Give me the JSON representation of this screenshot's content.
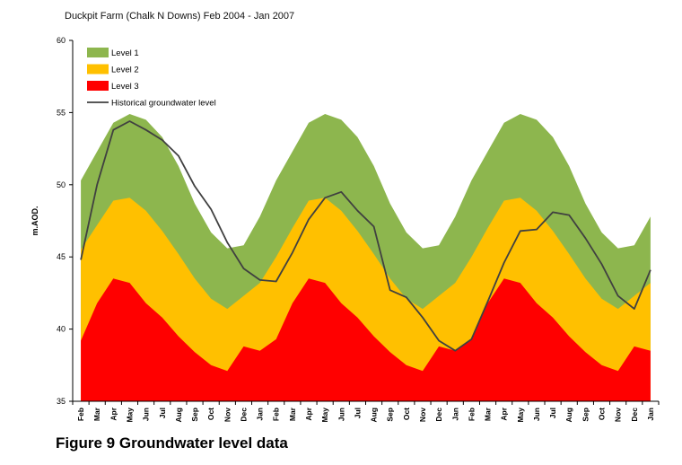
{
  "chart_data": {
    "type": "area",
    "title": "Duckpit Farm (Chalk N Downs) Feb 2004 - Jan 2007",
    "caption": "Figure 9 Groundwater level data",
    "ylabel": "m.AOD.",
    "xlabel": "",
    "ylim": [
      35,
      60
    ],
    "yticks": [
      35,
      40,
      45,
      50,
      55,
      60
    ],
    "categories": [
      "Feb",
      "Mar",
      "Apr",
      "May",
      "Jun",
      "Jul",
      "Aug",
      "Sep",
      "Oct",
      "Nov",
      "Dec",
      "Jan",
      "Feb",
      "Mar",
      "Apr",
      "May",
      "Jun",
      "Jul",
      "Aug",
      "Sep",
      "Oct",
      "Nov",
      "Dec",
      "Jan",
      "Feb",
      "Mar",
      "Apr",
      "May",
      "Jun",
      "Jul",
      "Aug",
      "Sep",
      "Oct",
      "Nov",
      "Dec",
      "Jan"
    ],
    "legend_position": "top-left",
    "series": [
      {
        "name": "Level 1",
        "kind": "band",
        "color": "#8DB64E",
        "values": [
          50.3,
          52.3,
          54.3,
          54.9,
          54.5,
          53.3,
          51.3,
          48.7,
          46.7,
          45.6,
          45.8,
          47.8,
          50.3,
          52.3,
          54.3,
          54.9,
          54.5,
          53.3,
          51.3,
          48.7,
          46.7,
          45.6,
          45.8,
          47.8,
          50.3,
          52.3,
          54.3,
          54.9,
          54.5,
          53.3,
          51.3,
          48.7,
          46.7,
          45.6,
          45.8,
          47.8
        ]
      },
      {
        "name": "Level 2",
        "kind": "band",
        "color": "#FFC000",
        "values": [
          45.5,
          47.2,
          48.9,
          49.1,
          48.2,
          46.8,
          45.2,
          43.5,
          42.1,
          41.4,
          42.3,
          43.2,
          45.0,
          47.0,
          48.9,
          49.1,
          48.2,
          46.8,
          45.2,
          43.5,
          42.1,
          41.4,
          42.3,
          43.2,
          45.0,
          47.0,
          48.9,
          49.1,
          48.2,
          46.8,
          45.2,
          43.5,
          42.1,
          41.4,
          42.3,
          43.2
        ]
      },
      {
        "name": "Level 3",
        "kind": "band",
        "color": "#FF0000",
        "values": [
          39.2,
          41.8,
          43.5,
          43.2,
          41.8,
          40.8,
          39.5,
          38.4,
          37.5,
          37.1,
          38.8,
          38.5,
          39.3,
          41.8,
          43.5,
          43.2,
          41.8,
          40.8,
          39.5,
          38.4,
          37.5,
          37.1,
          38.8,
          38.5,
          39.3,
          41.8,
          43.5,
          43.2,
          41.8,
          40.8,
          39.5,
          38.4,
          37.5,
          37.1,
          38.8,
          38.5
        ]
      },
      {
        "name": "Historical groundwater level",
        "kind": "line",
        "color": "#404040",
        "values": [
          44.8,
          50.0,
          53.8,
          54.4,
          53.8,
          53.1,
          52.0,
          49.9,
          48.3,
          46.0,
          44.2,
          43.4,
          43.3,
          45.3,
          47.6,
          49.1,
          49.5,
          48.2,
          47.1,
          42.7,
          42.2,
          40.8,
          39.2,
          38.5,
          39.3,
          41.9,
          44.6,
          46.8,
          46.9,
          48.1,
          47.9,
          46.3,
          44.5,
          42.3,
          41.4,
          44.1
        ]
      }
    ]
  }
}
